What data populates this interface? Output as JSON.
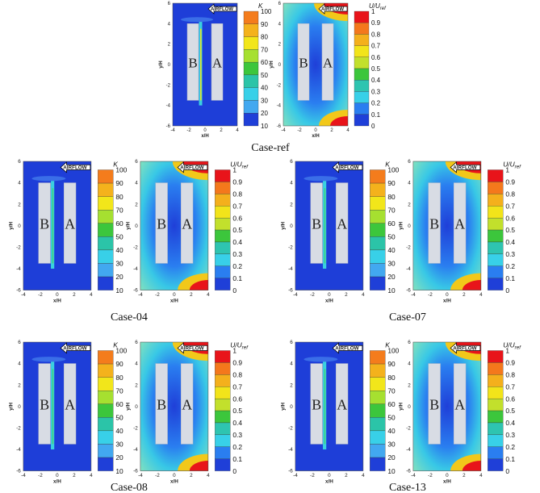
{
  "figure": {
    "axes": {
      "xlabel": "x/H",
      "ylabel": "y/H",
      "xticks": [
        -4,
        -2,
        0,
        2,
        4
      ],
      "yticks": [
        6,
        4,
        2,
        0,
        -2,
        -4,
        -6
      ]
    },
    "airflow": "AIRFLOW",
    "buildings": [
      "B",
      "A"
    ],
    "colorbars": {
      "K": {
        "title": "K",
        "ticks": [
          100,
          90,
          80,
          70,
          60,
          50,
          40,
          30,
          20,
          10
        ]
      },
      "U": {
        "title": "U/U",
        "subscript": "ref",
        "ticks": [
          1,
          0.9,
          0.8,
          0.7,
          0.6,
          0.5,
          0.4,
          0.3,
          0.2,
          0.1,
          0
        ]
      }
    },
    "cases": [
      {
        "caption": "Case-ref"
      },
      {
        "caption": "Case-04"
      },
      {
        "caption": "Case-07"
      },
      {
        "caption": "Case-08"
      },
      {
        "caption": "Case-13"
      }
    ]
  }
}
